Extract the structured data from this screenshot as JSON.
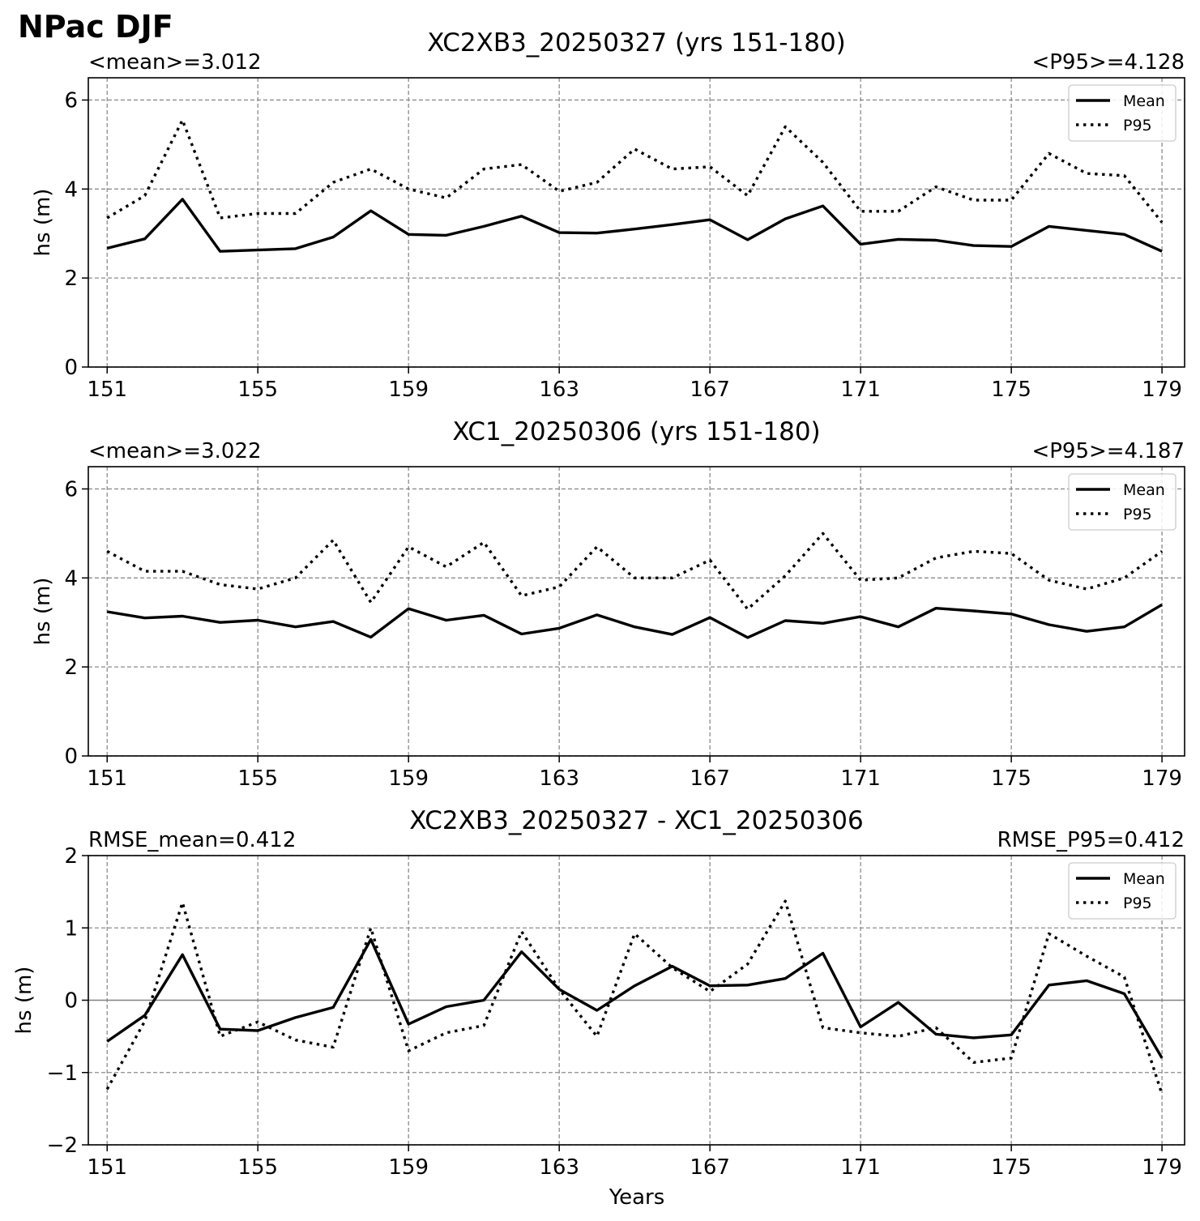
{
  "figure": {
    "suptitle": "NPac DJF",
    "xlabel": "Years"
  },
  "chart_data": [
    {
      "type": "line",
      "title": "XC2XB3_20250327 (yrs 151-180)",
      "left_annotation": "<mean>=3.012",
      "right_annotation": "<P95>=4.128",
      "ylabel": "hs (m)",
      "xlabel": "",
      "xlim": [
        150.5,
        179.6
      ],
      "ylim": [
        0,
        6.5
      ],
      "xticks": [
        151,
        155,
        159,
        163,
        167,
        171,
        175,
        179
      ],
      "yticks": [
        0,
        2,
        4,
        6
      ],
      "ytick_labels": [
        "0",
        "2",
        "4",
        "6"
      ],
      "grid": true,
      "legend": "top-right",
      "x": [
        151,
        152,
        153,
        154,
        155,
        156,
        157,
        158,
        159,
        160,
        161,
        162,
        163,
        164,
        165,
        166,
        167,
        168,
        169,
        170,
        171,
        172,
        173,
        174,
        175,
        176,
        177,
        178,
        179
      ],
      "series": [
        {
          "name": "Mean",
          "style": "solid",
          "values": [
            2.67,
            2.88,
            3.77,
            2.6,
            2.63,
            2.66,
            2.92,
            3.51,
            2.98,
            2.96,
            3.16,
            3.39,
            3.02,
            3.01,
            3.1,
            3.2,
            3.31,
            2.86,
            3.33,
            3.62,
            2.76,
            2.87,
            2.85,
            2.73,
            2.71,
            3.16,
            3.07,
            2.98,
            2.6
          ]
        },
        {
          "name": "P95",
          "style": "dotted",
          "values": [
            3.35,
            3.85,
            5.55,
            3.35,
            3.45,
            3.45,
            4.15,
            4.45,
            4.0,
            3.8,
            4.45,
            4.55,
            3.95,
            4.15,
            4.9,
            4.45,
            4.5,
            3.85,
            5.4,
            4.6,
            3.5,
            3.5,
            4.05,
            3.75,
            3.75,
            4.8,
            4.35,
            4.3,
            3.25
          ]
        }
      ]
    },
    {
      "type": "line",
      "title": "XC1_20250306 (yrs 151-180)",
      "left_annotation": "<mean>=3.022",
      "right_annotation": "<P95>=4.187",
      "ylabel": "hs (m)",
      "xlabel": "",
      "xlim": [
        150.5,
        179.6
      ],
      "ylim": [
        0,
        6.5
      ],
      "xticks": [
        151,
        155,
        159,
        163,
        167,
        171,
        175,
        179
      ],
      "yticks": [
        0,
        2,
        4,
        6
      ],
      "ytick_labels": [
        "0",
        "2",
        "4",
        "6"
      ],
      "grid": true,
      "legend": "top-right",
      "x": [
        151,
        152,
        153,
        154,
        155,
        156,
        157,
        158,
        159,
        160,
        161,
        162,
        163,
        164,
        165,
        166,
        167,
        168,
        169,
        170,
        171,
        172,
        173,
        174,
        175,
        176,
        177,
        178,
        179
      ],
      "series": [
        {
          "name": "Mean",
          "style": "solid",
          "values": [
            3.24,
            3.1,
            3.14,
            3.0,
            3.05,
            2.9,
            3.02,
            2.67,
            3.31,
            3.05,
            3.16,
            2.74,
            2.87,
            3.17,
            2.9,
            2.73,
            3.11,
            2.66,
            3.04,
            2.98,
            3.13,
            2.9,
            3.32,
            3.26,
            3.19,
            2.95,
            2.8,
            2.9,
            3.4
          ]
        },
        {
          "name": "P95",
          "style": "dotted",
          "values": [
            4.6,
            4.15,
            4.15,
            3.85,
            3.75,
            4.0,
            4.85,
            3.45,
            4.7,
            4.25,
            4.8,
            3.6,
            3.8,
            4.7,
            4.0,
            4.0,
            4.4,
            3.3,
            4.05,
            5.0,
            3.95,
            4.0,
            4.45,
            4.6,
            4.55,
            3.95,
            3.75,
            4.0,
            4.6
          ]
        }
      ]
    },
    {
      "type": "line",
      "title": "XC2XB3_20250327 - XC1_20250306",
      "left_annotation": "RMSE_mean=0.412",
      "right_annotation": "RMSE_P95=0.412",
      "ylabel": "hs (m)",
      "xlabel": "Years",
      "xlim": [
        150.5,
        179.6
      ],
      "ylim": [
        -2,
        2
      ],
      "xticks": [
        151,
        155,
        159,
        163,
        167,
        171,
        175,
        179
      ],
      "yticks": [
        -2,
        -1,
        0,
        1,
        2
      ],
      "ytick_labels": [
        "−2",
        "−1",
        "0",
        "1",
        "2"
      ],
      "grid": true,
      "zero_line": true,
      "legend": "top-right",
      "x": [
        151,
        152,
        153,
        154,
        155,
        156,
        157,
        158,
        159,
        160,
        161,
        162,
        163,
        164,
        165,
        166,
        167,
        168,
        169,
        170,
        171,
        172,
        173,
        174,
        175,
        176,
        177,
        178,
        179
      ],
      "series": [
        {
          "name": "Mean",
          "style": "solid",
          "values": [
            -0.57,
            -0.21,
            0.63,
            -0.4,
            -0.42,
            -0.24,
            -0.1,
            0.84,
            -0.33,
            -0.09,
            0.0,
            0.67,
            0.15,
            -0.14,
            0.2,
            0.47,
            0.2,
            0.21,
            0.3,
            0.65,
            -0.37,
            -0.03,
            -0.47,
            -0.52,
            -0.48,
            0.21,
            0.27,
            0.09,
            -0.8
          ]
        },
        {
          "name": "P95",
          "style": "dotted",
          "values": [
            -1.23,
            -0.29,
            1.35,
            -0.5,
            -0.3,
            -0.55,
            -0.65,
            1.0,
            -0.7,
            -0.45,
            -0.35,
            0.95,
            0.15,
            -0.5,
            0.92,
            0.45,
            0.12,
            0.5,
            1.37,
            -0.38,
            -0.45,
            -0.5,
            -0.38,
            -0.86,
            -0.8,
            0.92,
            0.61,
            0.32,
            -1.3
          ]
        }
      ]
    }
  ]
}
